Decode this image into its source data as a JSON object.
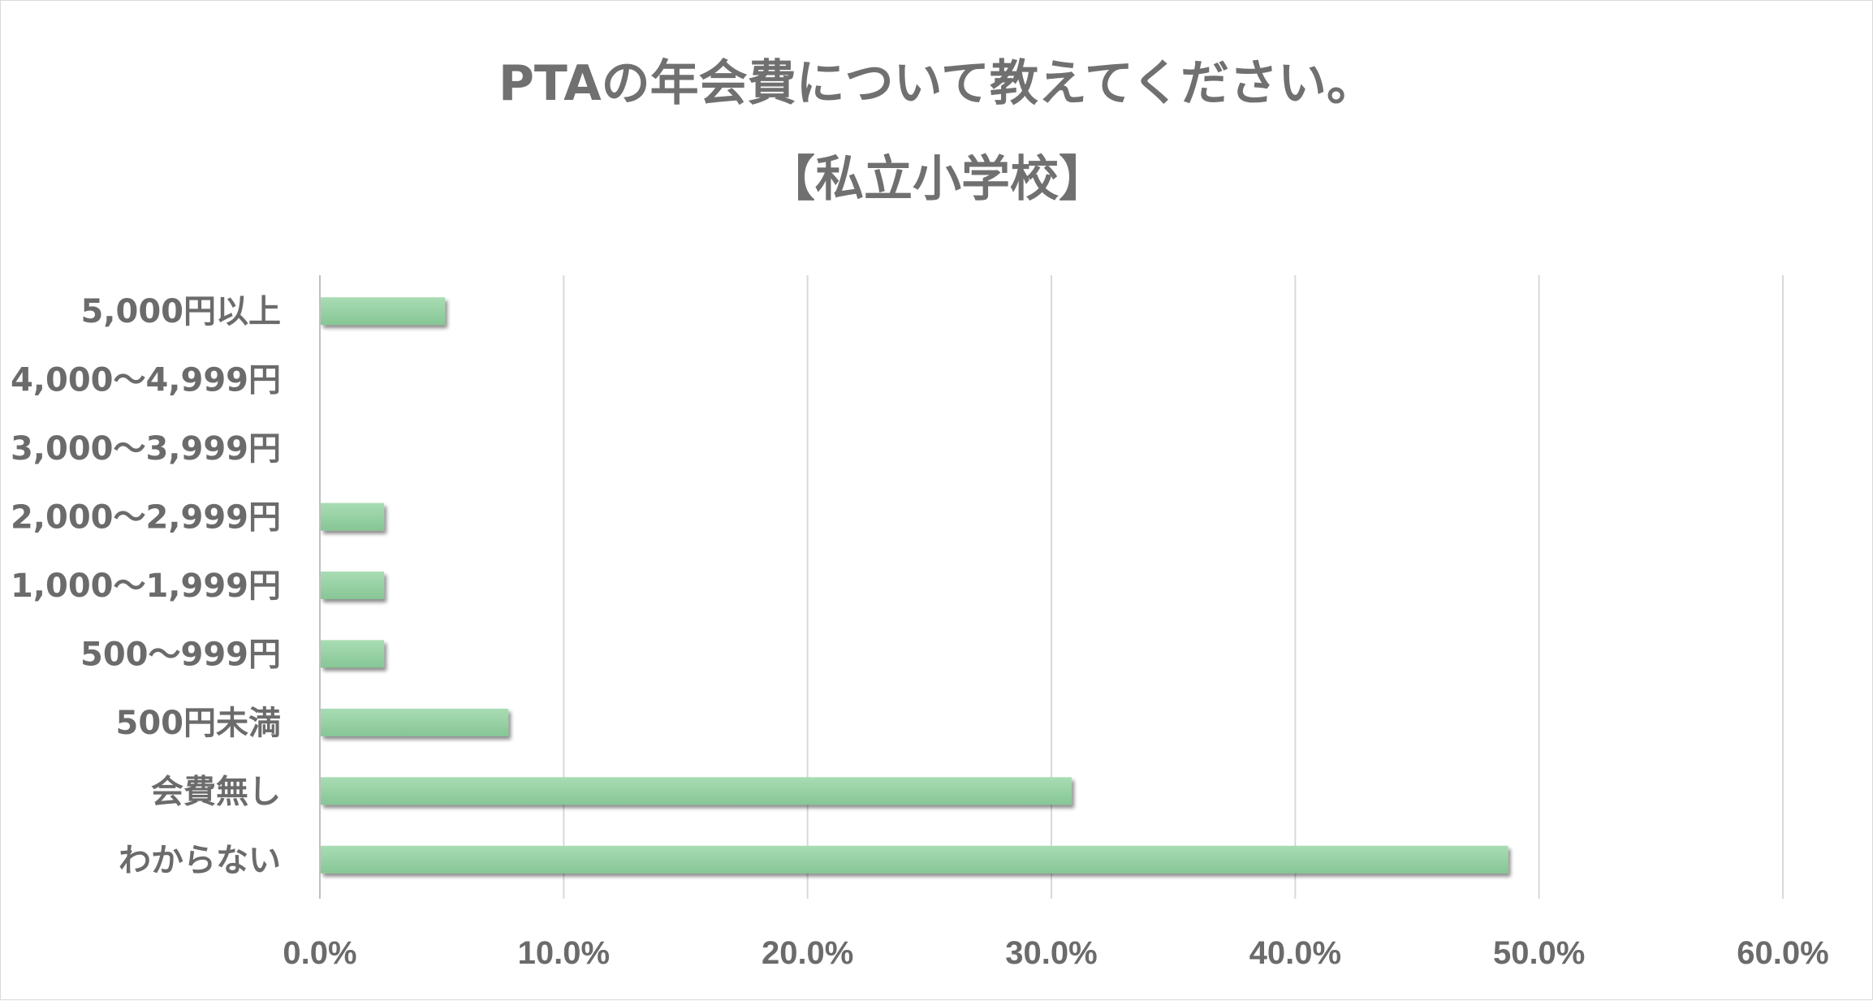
{
  "chart_data": {
    "type": "bar",
    "orientation": "horizontal",
    "title": "PTAの年会費について教えてください。",
    "subtitle": "【私立小学校】",
    "categories": [
      "5,000円以上",
      "4,000～4,999円",
      "3,000～3,999円",
      "2,000～2,999円",
      "1,000～1,999円",
      "500～999円",
      "500円未満",
      "会費無し",
      "わからない"
    ],
    "values": [
      5.1,
      0.0,
      0.0,
      2.6,
      2.6,
      2.6,
      7.7,
      30.8,
      48.7
    ],
    "xlim": [
      0,
      60
    ],
    "x_ticks": [
      "0.0%",
      "10.0%",
      "20.0%",
      "30.0%",
      "40.0%",
      "50.0%",
      "60.0%"
    ],
    "x_tick_values": [
      0,
      10,
      20,
      30,
      40,
      50,
      60
    ],
    "grid": "vertical",
    "legend": "none",
    "bar_color": "#92cfa0"
  }
}
